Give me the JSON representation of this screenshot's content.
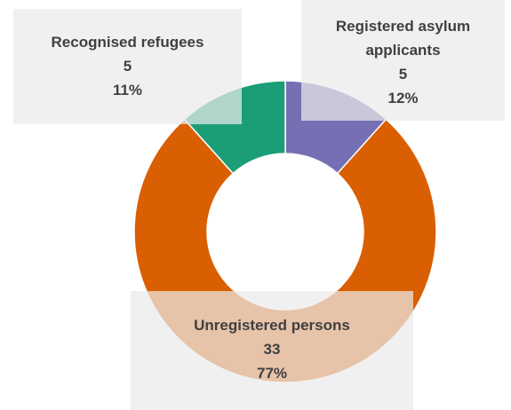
{
  "chart_data": {
    "type": "donut",
    "categories": [
      "Registered asylum applicants",
      "Unregistered persons",
      "Recognised refugees"
    ],
    "values": [
      5,
      33,
      5
    ],
    "percent_labels": [
      "12%",
      "77%",
      "11%"
    ],
    "colors": [
      "#7570b3",
      "#d95f02",
      "#1b9e77"
    ]
  }
}
